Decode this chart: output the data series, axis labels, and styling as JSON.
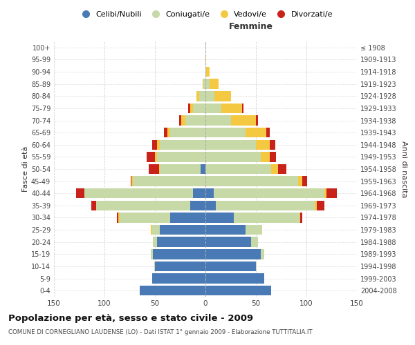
{
  "age_groups": [
    "0-4",
    "5-9",
    "10-14",
    "15-19",
    "20-24",
    "25-29",
    "30-34",
    "35-39",
    "40-44",
    "45-49",
    "50-54",
    "55-59",
    "60-64",
    "65-69",
    "70-74",
    "75-79",
    "80-84",
    "85-89",
    "90-94",
    "95-99",
    "100+"
  ],
  "birth_years": [
    "2004-2008",
    "1999-2003",
    "1994-1998",
    "1989-1993",
    "1984-1988",
    "1979-1983",
    "1974-1978",
    "1969-1973",
    "1964-1968",
    "1959-1963",
    "1954-1958",
    "1949-1953",
    "1944-1948",
    "1939-1943",
    "1934-1938",
    "1929-1933",
    "1924-1928",
    "1919-1923",
    "1914-1918",
    "1909-1913",
    "≤ 1908"
  ],
  "maschi": {
    "celibi": [
      65,
      53,
      50,
      52,
      48,
      45,
      35,
      15,
      12,
      0,
      5,
      0,
      0,
      0,
      0,
      0,
      0,
      0,
      0,
      0,
      0
    ],
    "coniugati": [
      0,
      0,
      1,
      2,
      4,
      8,
      50,
      93,
      108,
      72,
      40,
      48,
      45,
      35,
      20,
      12,
      6,
      2,
      0,
      0,
      0
    ],
    "vedovi": [
      0,
      0,
      0,
      0,
      0,
      1,
      1,
      0,
      0,
      1,
      1,
      2,
      3,
      3,
      4,
      3,
      3,
      1,
      0,
      0,
      0
    ],
    "divorziati": [
      0,
      0,
      0,
      0,
      0,
      0,
      2,
      5,
      8,
      1,
      10,
      8,
      5,
      3,
      2,
      2,
      0,
      0,
      0,
      0,
      0
    ]
  },
  "femmine": {
    "nubili": [
      65,
      58,
      50,
      55,
      45,
      40,
      28,
      10,
      8,
      0,
      0,
      0,
      0,
      0,
      0,
      0,
      0,
      0,
      0,
      0,
      0
    ],
    "coniugate": [
      0,
      0,
      1,
      3,
      7,
      16,
      65,
      98,
      110,
      92,
      65,
      55,
      50,
      40,
      25,
      16,
      9,
      4,
      1,
      0,
      0
    ],
    "vedove": [
      0,
      0,
      0,
      0,
      0,
      0,
      1,
      2,
      2,
      4,
      7,
      9,
      14,
      20,
      25,
      20,
      16,
      9,
      3,
      1,
      0
    ],
    "divorziate": [
      0,
      0,
      0,
      0,
      0,
      0,
      2,
      8,
      10,
      5,
      8,
      6,
      5,
      4,
      2,
      2,
      0,
      0,
      0,
      0,
      0
    ]
  },
  "colors": {
    "celibi_nubili": "#4a7ab5",
    "coniugati": "#c8d9a8",
    "vedovi": "#f5c842",
    "divorziati": "#c8221a"
  },
  "xlim": 150,
  "title": "Popolazione per età, sesso e stato civile - 2009",
  "subtitle": "COMUNE DI CORNEGLIANO LAUDENSE (LO) - Dati ISTAT 1° gennaio 2009 - Elaborazione TUTTITALIA.IT",
  "ylabel_left": "Fasce di età",
  "ylabel_right": "Anni di nascita",
  "legend_labels": [
    "Celibi/Nubili",
    "Coniugati/e",
    "Vedovi/e",
    "Divorzati/e"
  ]
}
